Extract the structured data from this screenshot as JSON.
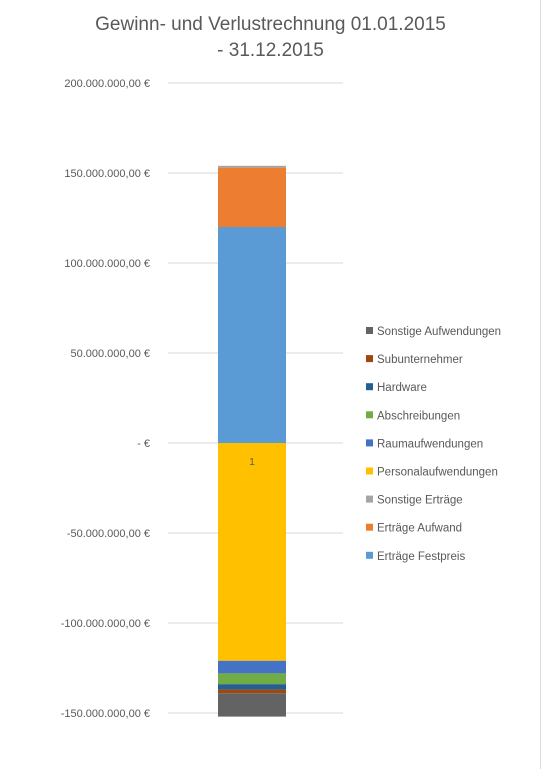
{
  "chart_data": {
    "type": "bar",
    "stacked": true,
    "title_line1": "Gewinn- und Verlustrechnung 01.01.2015",
    "title_line2": "- 31.12.2015",
    "categories": [
      "1"
    ],
    "category_label_shown": "1",
    "ylim": [
      -150000000,
      200000000
    ],
    "y_ticks": [
      200000000,
      150000000,
      100000000,
      50000000,
      0,
      -50000000,
      -100000000,
      -150000000
    ],
    "y_tick_labels": [
      "200.000.000,00 €",
      "150.000.000,00 €",
      "100.000.000,00 €",
      "50.000.000,00 €",
      "-   €",
      "-50.000.000,00 €",
      "-100.000.000,00 €",
      "-150.000.000,00 €"
    ],
    "grid": true,
    "legend_position": "right",
    "series": [
      {
        "name": "Erträge Festpreis",
        "values": [
          120000000
        ],
        "color": "#5b9bd5"
      },
      {
        "name": "Erträge Aufwand",
        "values": [
          33000000
        ],
        "color": "#ed7d31"
      },
      {
        "name": "Sonstige Erträge",
        "values": [
          1000000
        ],
        "color": "#a5a5a5"
      },
      {
        "name": "Personalaufwendungen",
        "values": [
          -121000000
        ],
        "color": "#ffc000"
      },
      {
        "name": "Raumaufwendungen",
        "values": [
          -7000000
        ],
        "color": "#4472c4"
      },
      {
        "name": "Abschreibungen",
        "values": [
          -6000000
        ],
        "color": "#70ad47"
      },
      {
        "name": "Hardware",
        "values": [
          -3000000
        ],
        "color": "#255e91"
      },
      {
        "name": "Subunternehmer",
        "values": [
          -2000000
        ],
        "color": "#9e480e"
      },
      {
        "name": "Sonstige Aufwendungen",
        "values": [
          -13000000
        ],
        "color": "#636363"
      }
    ],
    "legend_order": [
      "Sonstige Aufwendungen",
      "Subunternehmer",
      "Hardware",
      "Abschreibungen",
      "Raumaufwendungen",
      "Personalaufwendungen",
      "Sonstige Erträge",
      "Erträge Aufwand",
      "Erträge Festpreis"
    ]
  }
}
